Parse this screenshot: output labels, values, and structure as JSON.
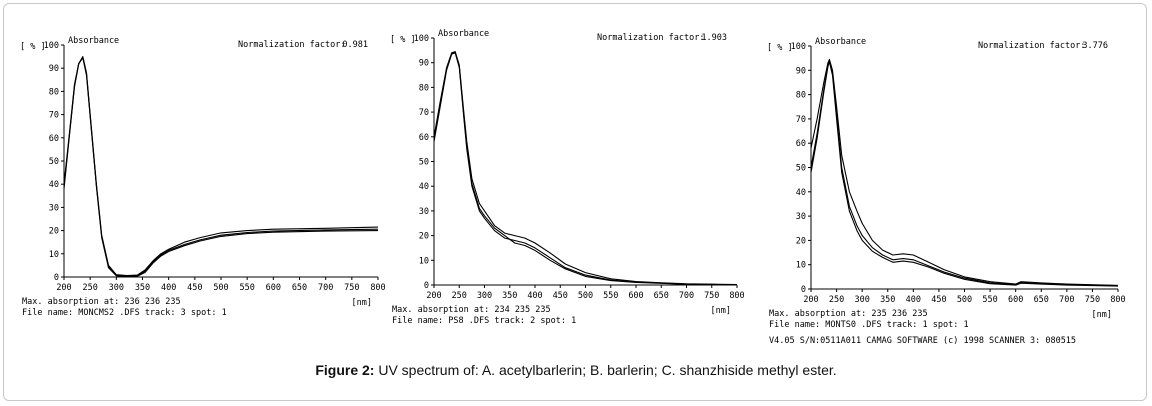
{
  "caption": {
    "label": "Figure 2:",
    "text": "UV spectrum of: A. acetylbarlerin; B. barlerin; C. shanzhiside methyl ester."
  },
  "chart_data": [
    {
      "type": "line",
      "ylabel": "Absorbance",
      "y_unit": "[ % ]",
      "x_unit": "[nm]",
      "normalization_label": "Normalization factor:",
      "normalization_value": "0.981",
      "ylim": [
        0,
        100
      ],
      "xlim": [
        200,
        800
      ],
      "y_ticks": [
        "0",
        "10",
        "20",
        "30",
        "40",
        "50",
        "60",
        "70",
        "80",
        "90",
        "100"
      ],
      "x_ticks": [
        "200",
        "250",
        "300",
        "350",
        "400",
        "450",
        "500",
        "550",
        "600",
        "650",
        "700",
        "750",
        "800"
      ],
      "footer_line1": "Max. absorption at: 236 236 235",
      "footer_line2": "File name: MONCMS2 .DFS  track:  3  spot:  1",
      "footer_line3": "",
      "series": [
        {
          "values": [
            [
              200,
              38
            ],
            [
              210,
              60
            ],
            [
              220,
              82
            ],
            [
              228,
              92
            ],
            [
              236,
              95
            ],
            [
              243,
              88
            ],
            [
              250,
              70
            ],
            [
              262,
              40
            ],
            [
              272,
              18
            ],
            [
              285,
              5
            ],
            [
              300,
              1
            ],
            [
              320,
              0.6
            ],
            [
              340,
              0.8
            ],
            [
              355,
              3
            ],
            [
              370,
              7
            ],
            [
              385,
              10
            ],
            [
              400,
              12
            ],
            [
              430,
              15
            ],
            [
              460,
              17
            ],
            [
              500,
              19
            ],
            [
              550,
              20
            ],
            [
              600,
              20.6
            ],
            [
              700,
              21
            ],
            [
              800,
              21.5
            ]
          ]
        },
        {
          "values": [
            [
              200,
              40
            ],
            [
              210,
              61
            ],
            [
              220,
              83
            ],
            [
              228,
              92
            ],
            [
              236,
              94.5
            ],
            [
              243,
              87
            ],
            [
              250,
              69
            ],
            [
              262,
              39
            ],
            [
              272,
              17
            ],
            [
              285,
              4
            ],
            [
              300,
              0.5
            ],
            [
              320,
              0.2
            ],
            [
              340,
              0.3
            ],
            [
              355,
              2
            ],
            [
              370,
              6
            ],
            [
              385,
              9
            ],
            [
              400,
              11
            ],
            [
              430,
              13.5
            ],
            [
              460,
              15.5
            ],
            [
              500,
              17.5
            ],
            [
              550,
              18.7
            ],
            [
              600,
              19.3
            ],
            [
              700,
              19.8
            ],
            [
              800,
              20
            ]
          ]
        },
        {
          "values": [
            [
              200,
              39
            ],
            [
              210,
              60.5
            ],
            [
              220,
              82.5
            ],
            [
              228,
              91.8
            ],
            [
              236,
              94.7
            ],
            [
              243,
              87.5
            ],
            [
              250,
              69.5
            ],
            [
              262,
              39.5
            ],
            [
              272,
              17.5
            ],
            [
              285,
              4.5
            ],
            [
              300,
              0.8
            ],
            [
              320,
              0.4
            ],
            [
              340,
              0.5
            ],
            [
              355,
              2.5
            ],
            [
              370,
              6.5
            ],
            [
              385,
              9.5
            ],
            [
              400,
              11.5
            ],
            [
              430,
              14
            ],
            [
              460,
              16
            ],
            [
              500,
              18
            ],
            [
              550,
              19.2
            ],
            [
              600,
              19.8
            ],
            [
              700,
              20.3
            ],
            [
              800,
              20.6
            ]
          ]
        }
      ]
    },
    {
      "type": "line",
      "ylabel": "Absorbance",
      "y_unit": "[ % ]",
      "x_unit": "[nm]",
      "normalization_label": "Normalization factor:",
      "normalization_value": "1.903",
      "ylim": [
        0,
        100
      ],
      "xlim": [
        200,
        800
      ],
      "y_ticks": [
        "0",
        "10",
        "20",
        "30",
        "40",
        "50",
        "60",
        "70",
        "80",
        "90",
        "100"
      ],
      "x_ticks": [
        "200",
        "250",
        "300",
        "350",
        "400",
        "450",
        "500",
        "550",
        "600",
        "650",
        "700",
        "750",
        "800"
      ],
      "footer_line1": "Max. absorption at: 234 235 235",
      "footer_line2": "File name: PS8    .DFS  track: 2   spot:  1",
      "footer_line3": "",
      "series": [
        {
          "values": [
            [
              200,
              58
            ],
            [
              212,
              72
            ],
            [
              225,
              87
            ],
            [
              235,
              93.5
            ],
            [
              242,
              94
            ],
            [
              250,
              88
            ],
            [
              258,
              70
            ],
            [
              265,
              55
            ],
            [
              275,
              40
            ],
            [
              290,
              30
            ],
            [
              300,
              27
            ],
            [
              320,
              22
            ],
            [
              340,
              19
            ],
            [
              360,
              18
            ],
            [
              380,
              17
            ],
            [
              400,
              15
            ],
            [
              430,
              11
            ],
            [
              460,
              7
            ],
            [
              500,
              4
            ],
            [
              550,
              2
            ],
            [
              600,
              1.2
            ],
            [
              650,
              0.8
            ],
            [
              700,
              0.4
            ],
            [
              800,
              0.1
            ]
          ]
        },
        {
          "values": [
            [
              200,
              60
            ],
            [
              212,
              74
            ],
            [
              225,
              88
            ],
            [
              235,
              94
            ],
            [
              242,
              94.5
            ],
            [
              250,
              89
            ],
            [
              258,
              72
            ],
            [
              265,
              58
            ],
            [
              275,
              43
            ],
            [
              290,
              33
            ],
            [
              300,
              30
            ],
            [
              320,
              24
            ],
            [
              340,
              21
            ],
            [
              360,
              20
            ],
            [
              380,
              19
            ],
            [
              400,
              17
            ],
            [
              430,
              13
            ],
            [
              460,
              8.5
            ],
            [
              500,
              5
            ],
            [
              550,
              2.5
            ],
            [
              600,
              1.4
            ],
            [
              650,
              0.9
            ],
            [
              700,
              0.5
            ],
            [
              800,
              0.2
            ]
          ]
        },
        {
          "values": [
            [
              200,
              59
            ],
            [
              212,
              73
            ],
            [
              225,
              87.5
            ],
            [
              235,
              93.8
            ],
            [
              242,
              94.2
            ],
            [
              250,
              88.5
            ],
            [
              258,
              71
            ],
            [
              265,
              56
            ],
            [
              275,
              41
            ],
            [
              290,
              31
            ],
            [
              300,
              28
            ],
            [
              320,
              23
            ],
            [
              340,
              20
            ],
            [
              360,
              17
            ],
            [
              380,
              16
            ],
            [
              400,
              14
            ],
            [
              430,
              10
            ],
            [
              460,
              6.5
            ],
            [
              500,
              3.5
            ],
            [
              550,
              1.8
            ],
            [
              600,
              1
            ],
            [
              650,
              0.7
            ],
            [
              700,
              0.3
            ],
            [
              800,
              0.1
            ]
          ]
        }
      ]
    },
    {
      "type": "line",
      "ylabel": "Absorbance",
      "y_unit": "[ % ]",
      "x_unit": "[nm]",
      "normalization_label": "Normalization factor:",
      "normalization_value": "3.776",
      "ylim": [
        0,
        100
      ],
      "xlim": [
        200,
        800
      ],
      "y_ticks": [
        "0",
        "10",
        "20",
        "30",
        "40",
        "50",
        "60",
        "70",
        "80",
        "90",
        "100"
      ],
      "x_ticks": [
        "200",
        "250",
        "300",
        "350",
        "400",
        "450",
        "500",
        "550",
        "600",
        "650",
        "700",
        "750",
        "800"
      ],
      "footer_line1": "Max. absorption at: 235 236 235",
      "footer_line2": "File name: MONTS0 .DFS  track:  1  spot:  1",
      "footer_line3": "V4.05 S/N:0511A011       CAMAG SOFTWARE (c) 1998      SCANNER 3:  080515",
      "series": [
        {
          "values": [
            [
              200,
              58
            ],
            [
              212,
              70
            ],
            [
              225,
              85
            ],
            [
              233,
              93
            ],
            [
              236,
              94.5
            ],
            [
              242,
              90
            ],
            [
              250,
              75
            ],
            [
              260,
              55
            ],
            [
              275,
              40
            ],
            [
              290,
              32
            ],
            [
              300,
              27
            ],
            [
              320,
              20
            ],
            [
              340,
              16
            ],
            [
              360,
              14
            ],
            [
              380,
              14.5
            ],
            [
              400,
              14
            ],
            [
              430,
              11
            ],
            [
              460,
              8
            ],
            [
              500,
              5
            ],
            [
              550,
              3
            ],
            [
              600,
              2
            ],
            [
              610,
              3
            ],
            [
              650,
              2.5
            ],
            [
              700,
              2
            ],
            [
              800,
              1.5
            ]
          ]
        },
        {
          "values": [
            [
              200,
              50
            ],
            [
              212,
              64
            ],
            [
              225,
              82
            ],
            [
              233,
              92
            ],
            [
              236,
              94
            ],
            [
              242,
              89
            ],
            [
              250,
              72
            ],
            [
              260,
              50
            ],
            [
              275,
              34
            ],
            [
              290,
              26
            ],
            [
              300,
              22
            ],
            [
              320,
              17
            ],
            [
              340,
              14
            ],
            [
              360,
              12
            ],
            [
              380,
              12.5
            ],
            [
              400,
              12
            ],
            [
              430,
              9.5
            ],
            [
              460,
              7
            ],
            [
              500,
              4.5
            ],
            [
              550,
              2.5
            ],
            [
              600,
              1.8
            ],
            [
              610,
              2.6
            ],
            [
              650,
              2.2
            ],
            [
              700,
              1.8
            ],
            [
              800,
              1.4
            ]
          ]
        },
        {
          "values": [
            [
              200,
              48
            ],
            [
              212,
              62
            ],
            [
              225,
              81
            ],
            [
              233,
              91.5
            ],
            [
              236,
              93.5
            ],
            [
              242,
              88
            ],
            [
              250,
              70
            ],
            [
              260,
              48
            ],
            [
              275,
              32
            ],
            [
              290,
              24
            ],
            [
              300,
              20
            ],
            [
              320,
              15.5
            ],
            [
              340,
              13
            ],
            [
              360,
              11
            ],
            [
              380,
              11.5
            ],
            [
              400,
              11
            ],
            [
              430,
              9
            ],
            [
              460,
              6.5
            ],
            [
              500,
              4
            ],
            [
              550,
              2.2
            ],
            [
              600,
              1.6
            ],
            [
              610,
              2.4
            ],
            [
              650,
              2
            ],
            [
              700,
              1.6
            ],
            [
              800,
              1.2
            ]
          ]
        }
      ]
    }
  ]
}
